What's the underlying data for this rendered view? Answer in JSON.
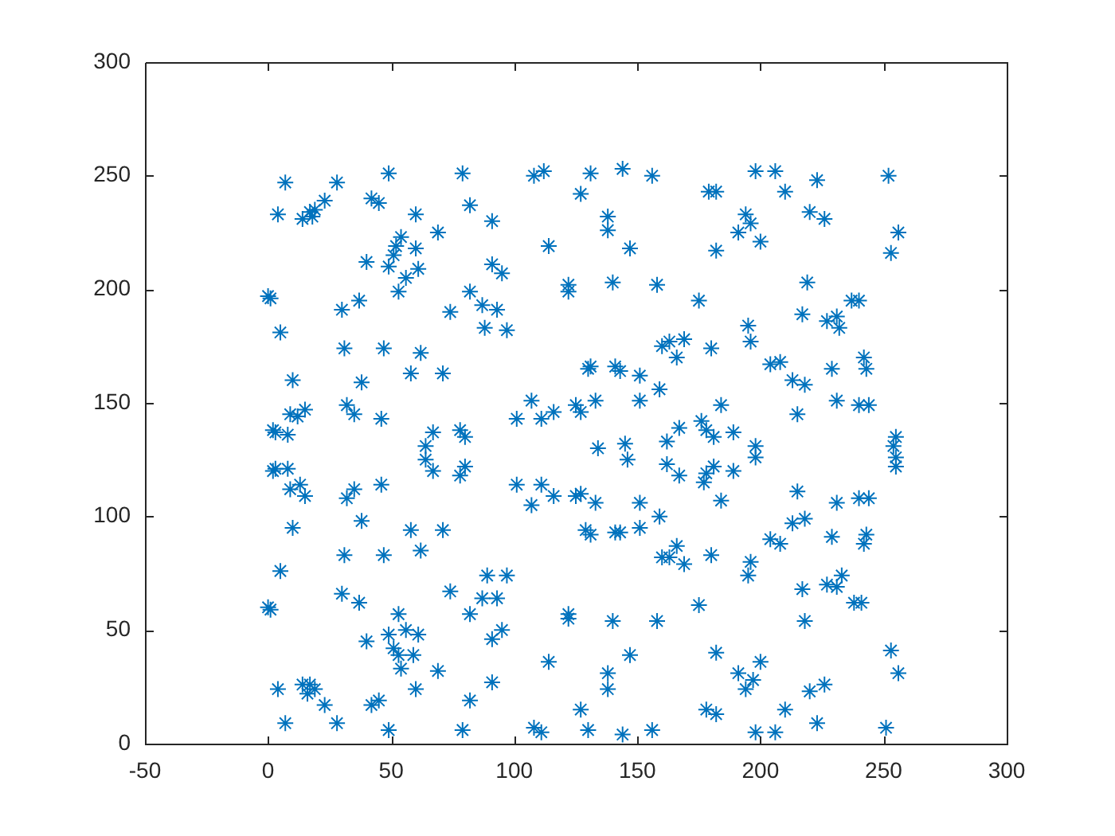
{
  "chart_data": {
    "type": "scatter",
    "color": "#0072bd",
    "marker": "cross",
    "x": [
      7,
      28,
      49,
      79,
      4,
      14,
      17,
      18,
      19,
      23,
      42,
      45,
      82,
      60,
      54,
      69,
      52,
      60,
      51,
      49,
      40,
      61,
      56,
      53,
      82,
      0,
      1,
      37,
      30,
      74,
      5,
      31,
      47,
      62,
      58,
      71,
      10,
      38,
      32,
      35,
      9,
      12,
      15,
      46,
      2,
      3,
      8,
      67,
      64,
      78,
      80,
      64,
      2,
      3,
      8,
      9,
      13,
      15,
      35,
      32,
      46,
      67,
      78,
      80,
      10,
      38,
      58,
      71,
      31,
      47,
      62,
      5,
      0,
      1,
      30,
      37,
      74,
      82,
      53,
      56,
      61,
      49,
      40,
      51,
      53,
      59,
      54,
      69,
      4,
      14,
      17,
      16,
      19,
      23,
      42,
      45,
      60,
      82,
      7,
      28,
      49,
      79,
      108,
      112,
      131,
      144,
      156,
      127,
      91,
      138,
      138,
      114,
      147,
      91,
      95,
      122,
      122,
      140,
      158,
      87,
      93,
      88,
      97,
      160,
      163,
      169,
      166,
      130,
      131,
      141,
      143,
      151,
      159,
      107,
      151,
      133,
      101,
      111,
      116,
      125,
      127,
      167,
      162,
      134,
      145,
      146,
      162,
      167,
      101,
      111,
      116,
      107,
      125,
      127,
      133,
      151,
      159,
      129,
      131,
      141,
      143,
      151,
      166,
      160,
      163,
      169,
      89,
      97,
      87,
      93,
      91,
      95,
      122,
      122,
      140,
      158,
      114,
      147,
      91,
      138,
      138,
      127,
      108,
      111,
      130,
      144,
      156,
      198,
      206,
      223,
      252,
      179,
      182,
      210,
      194,
      196,
      191,
      200,
      220,
      226,
      256,
      253,
      182,
      219,
      175,
      237,
      240,
      217,
      227,
      231,
      232,
      195,
      196,
      180,
      204,
      208,
      213,
      218,
      229,
      242,
      243,
      231,
      240,
      244,
      184,
      215,
      176,
      178,
      181,
      189,
      198,
      255,
      254,
      255,
      255,
      198,
      181,
      178,
      177,
      189,
      184,
      215,
      231,
      240,
      244,
      213,
      218,
      204,
      208,
      229,
      243,
      242,
      180,
      196,
      195,
      217,
      227,
      231,
      233,
      238,
      241,
      175,
      218,
      182,
      253,
      256,
      191,
      200,
      197,
      194,
      226,
      220,
      210,
      178,
      182,
      223,
      198,
      206,
      251
    ],
    "values": [
      247,
      247,
      251,
      251,
      233,
      231,
      234,
      232,
      235,
      239,
      240,
      238,
      237,
      233,
      223,
      225,
      219,
      218,
      215,
      210,
      212,
      209,
      205,
      199,
      199,
      197,
      196,
      195,
      191,
      190,
      181,
      174,
      174,
      172,
      163,
      163,
      160,
      159,
      149,
      145,
      145,
      144,
      147,
      143,
      138,
      137,
      136,
      137,
      131,
      138,
      135,
      125,
      120,
      121,
      121,
      112,
      114,
      109,
      112,
      108,
      114,
      120,
      118,
      122,
      95,
      98,
      94,
      94,
      83,
      83,
      85,
      76,
      60,
      59,
      66,
      62,
      67,
      57,
      57,
      50,
      48,
      48,
      45,
      42,
      39,
      39,
      33,
      32,
      24,
      26,
      26,
      22,
      24,
      17,
      17,
      19,
      24,
      19,
      9,
      9,
      6,
      6,
      250,
      252,
      251,
      253,
      250,
      242,
      230,
      232,
      226,
      219,
      218,
      211,
      207,
      202,
      199,
      203,
      202,
      193,
      191,
      183,
      182,
      175,
      177,
      178,
      170,
      165,
      166,
      166,
      164,
      162,
      156,
      151,
      151,
      151,
      143,
      143,
      146,
      149,
      146,
      139,
      133,
      130,
      132,
      125,
      123,
      118,
      114,
      114,
      109,
      105,
      109,
      110,
      106,
      106,
      100,
      94,
      92,
      93,
      93,
      95,
      87,
      82,
      82,
      79,
      74,
      74,
      64,
      64,
      46,
      50,
      57,
      55,
      54,
      54,
      36,
      39,
      27,
      31,
      24,
      15,
      7,
      5,
      6,
      4,
      6,
      252,
      252,
      248,
      250,
      243,
      243,
      243,
      233,
      229,
      225,
      221,
      234,
      231,
      225,
      216,
      217,
      203,
      195,
      195,
      195,
      189,
      186,
      188,
      183,
      184,
      177,
      174,
      167,
      168,
      160,
      158,
      165,
      170,
      165,
      151,
      149,
      149,
      149,
      145,
      142,
      138,
      135,
      137,
      131,
      135,
      131,
      126,
      122,
      126,
      122,
      119,
      115,
      120,
      107,
      111,
      106,
      108,
      108,
      97,
      99,
      90,
      88,
      91,
      92,
      88,
      83,
      80,
      74,
      68,
      70,
      69,
      74,
      62,
      62,
      61,
      54,
      40,
      41,
      31,
      31,
      36,
      28,
      24,
      26,
      23,
      15,
      15,
      13,
      9,
      5,
      5,
      7
    ],
    "xlim": [
      -50,
      300
    ],
    "xticks": [
      -50,
      0,
      50,
      100,
      150,
      200,
      250,
      300
    ],
    "ylim": [
      0,
      300
    ],
    "yticks": [
      0,
      50,
      100,
      150,
      200,
      250,
      300
    ]
  }
}
